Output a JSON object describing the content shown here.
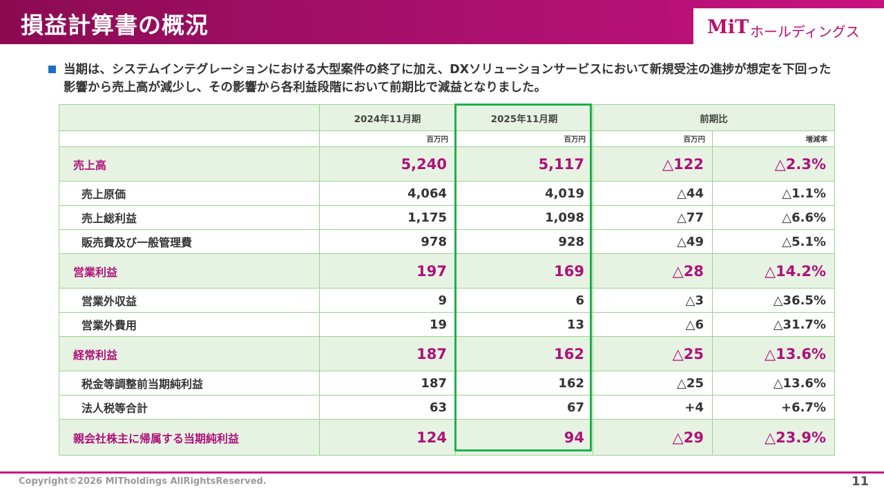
{
  "header": {
    "title": "損益計算書の概況",
    "logo_mark": "MiT",
    "logo_sub": "ホールディングス"
  },
  "summary": {
    "text": "当期は、システムインテグレーションにおける大型案件の終了に加え、DXソリューションサービスにおいて新規受注の進捗が想定を下回った影響から売上高が減少し、その影響から各利益段階において前期比で減益となりました。"
  },
  "table": {
    "col_2024": "2024年11月期",
    "col_2025": "2025年11月期",
    "col_yoy": "前期比",
    "unit_million": "百万円",
    "unit_rate": "増減率",
    "rows": [
      {
        "label": "売上高",
        "v2024": "5,240",
        "v2025": "5,117",
        "diff": "△122",
        "rate": "△2.3%"
      },
      {
        "label": "売上原価",
        "v2024": "4,064",
        "v2025": "4,019",
        "diff": "△44",
        "rate": "△1.1%"
      },
      {
        "label": "売上総利益",
        "v2024": "1,175",
        "v2025": "1,098",
        "diff": "△77",
        "rate": "△6.6%"
      },
      {
        "label": "販売費及び一般管理費",
        "v2024": "978",
        "v2025": "928",
        "diff": "△49",
        "rate": "△5.1%"
      },
      {
        "label": "営業利益",
        "v2024": "197",
        "v2025": "169",
        "diff": "△28",
        "rate": "△14.2%"
      },
      {
        "label": "営業外収益",
        "v2024": "9",
        "v2025": "6",
        "diff": "△3",
        "rate": "△36.5%"
      },
      {
        "label": "営業外費用",
        "v2024": "19",
        "v2025": "13",
        "diff": "△6",
        "rate": "△31.7%"
      },
      {
        "label": "経常利益",
        "v2024": "187",
        "v2025": "162",
        "diff": "△25",
        "rate": "△13.6%"
      },
      {
        "label": "税金等調整前当期純利益",
        "v2024": "187",
        "v2025": "162",
        "diff": "△25",
        "rate": "△13.6%"
      },
      {
        "label": "法人税等合計",
        "v2024": "63",
        "v2025": "67",
        "diff": "+4",
        "rate": "+6.7%"
      },
      {
        "label": "親会社株主に帰属する当期純利益",
        "v2024": "124",
        "v2025": "94",
        "diff": "△29",
        "rate": "△23.9%"
      }
    ]
  },
  "footer": {
    "copyright": "Copyright©2026 MITholdings AllRightsReserved.",
    "page_number": "11"
  },
  "colors": {
    "brand_magenta": "#b0107a",
    "table_border": "#9bd08f",
    "highlight_green": "#1db04a",
    "row_fill": "#e6f3e2",
    "bullet_blue": "#1a6fc4"
  }
}
